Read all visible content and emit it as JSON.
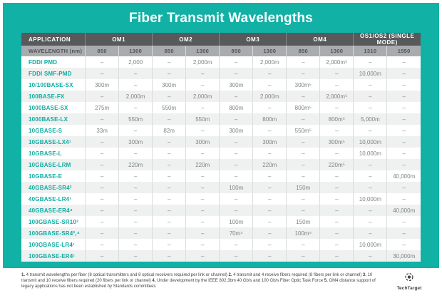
{
  "title": "Fiber Transmit Wavelengths",
  "colors": {
    "teal_background": "#11B1A6",
    "header_dark": "#58595B",
    "header_gray": "#A9ABAE",
    "row_alt": "#EFF0F0",
    "application_text": "#0CADA3",
    "value_text": "#808285"
  },
  "chart_data": {
    "type": "table",
    "title": "Fiber Transmit Wavelengths",
    "application_header": "APPLICATION",
    "groups": [
      "OM1",
      "OM2",
      "OM3",
      "OM4",
      "OS1/OS2 (SINGLE MODE)"
    ],
    "wavelength_row_label": "WAVELENGTH (nm)",
    "wavelengths_nm": [
      "850",
      "1300",
      "850",
      "1300",
      "850",
      "1300",
      "850",
      "1300",
      "1310",
      "1550"
    ],
    "rows": [
      {
        "application": "FDDI PMD",
        "values": [
          "–",
          "2,000",
          "–",
          "2,000m",
          "–",
          "2,000m",
          "–",
          "2,000m⁵",
          "–",
          "–"
        ]
      },
      {
        "application": "FDDI SMF-PMD",
        "values": [
          "–",
          "–",
          "–",
          "–",
          "–",
          "–",
          "–",
          "–",
          "10,000m",
          "–"
        ]
      },
      {
        "application": "10/100BASE-SX",
        "values": [
          "300m",
          "–",
          "300m",
          "–",
          "300m",
          "–",
          "300m⁵",
          "–",
          "–",
          "–"
        ]
      },
      {
        "application": "100BASE-FX",
        "values": [
          "–",
          "2,000m",
          "–",
          "2,000m",
          "–",
          "2,000m",
          "–",
          "2,000m⁵",
          "–",
          "–"
        ]
      },
      {
        "application": "1000BASE-SX",
        "values": [
          "275m",
          "–",
          "550m",
          "–",
          "800m",
          "–",
          "800m⁵",
          "–",
          "–",
          "–"
        ]
      },
      {
        "application": "1000BASE-LX",
        "values": [
          "–",
          "550m",
          "–",
          "550m",
          "–",
          "800m",
          "–",
          "800m⁵",
          "5,000m",
          "–"
        ]
      },
      {
        "application": "10GBASE-S",
        "values": [
          "33m",
          "–",
          "82m",
          "–",
          "300m",
          "–",
          "550m⁵",
          "–",
          "–",
          "–"
        ]
      },
      {
        "application": "10GBASE-LX4¹",
        "values": [
          "–",
          "300m",
          "–",
          "300m",
          "–",
          "300m",
          "–",
          "300m⁵",
          "10,000m",
          "–"
        ]
      },
      {
        "application": "10GBASE-L",
        "values": [
          "–",
          "–",
          "–",
          "–",
          "–",
          "–",
          "–",
          "–",
          "10,000m",
          "–"
        ]
      },
      {
        "application": "10GBASE-LRM",
        "values": [
          "–",
          "220m",
          "–",
          "220m",
          "–",
          "220m",
          "–",
          "220m⁵",
          "–",
          "–"
        ]
      },
      {
        "application": "10GBASE-E",
        "values": [
          "–",
          "–",
          "–",
          "–",
          "–",
          "–",
          "–",
          "–",
          "–",
          "40,000m"
        ]
      },
      {
        "application": "40GBASE-SR4²",
        "values": [
          "–",
          "–",
          "–",
          "–",
          "100m",
          "–",
          "150m",
          "–",
          "–",
          "–"
        ]
      },
      {
        "application": "40GBASE-LR4¹",
        "values": [
          "–",
          "–",
          "–",
          "–",
          "–",
          "–",
          "–",
          "–",
          "10,000m",
          "–"
        ]
      },
      {
        "application": "40GBASE-ER4⁴",
        "values": [
          "–",
          "–",
          "–",
          "–",
          "–",
          "–",
          "–",
          "–",
          "–",
          "40,000m"
        ]
      },
      {
        "application": "100GBASE-SR10³",
        "values": [
          "–",
          "–",
          "–",
          "–",
          "100m",
          "–",
          "150m",
          "–",
          "–",
          "–"
        ]
      },
      {
        "application": "100GBASE-SR4²,⁴",
        "values": [
          "–",
          "–",
          "–",
          "–",
          "70m⁴",
          "–",
          "100m⁴",
          "–",
          "–",
          "–"
        ]
      },
      {
        "application": "100GBASE-LR4¹",
        "values": [
          "–",
          "–",
          "–",
          "–",
          "–",
          "–",
          "–",
          "–",
          "10,000m",
          "–"
        ]
      },
      {
        "application": "100GBASE-ER4¹",
        "values": [
          "–",
          "–",
          "–",
          "–",
          "–",
          "–",
          "–",
          "–",
          "–",
          "30,000m"
        ]
      }
    ]
  },
  "footnotes": [
    {
      "num": "1.",
      "text": "4 transmit wavelengths per fiber (8 optical transmitters and 8 optical receivers required per link or channel)"
    },
    {
      "num": "2.",
      "text": "4 transmit and 4 receive fibers required (8 fibers per link or channel)"
    },
    {
      "num": "3.",
      "text": "10 transmit and 10 receive fibers required (20 fibers per link or channel)"
    },
    {
      "num": "4.",
      "text": "Under development by the IEEE 802.3bm 40 Gb/s and 100 Gb/s Fiber Optic Task Force"
    },
    {
      "num": "5.",
      "text": "OM4 distance support of legacy applications has not been established by Standards committees"
    }
  ],
  "logo": {
    "text": "TechTarget"
  }
}
